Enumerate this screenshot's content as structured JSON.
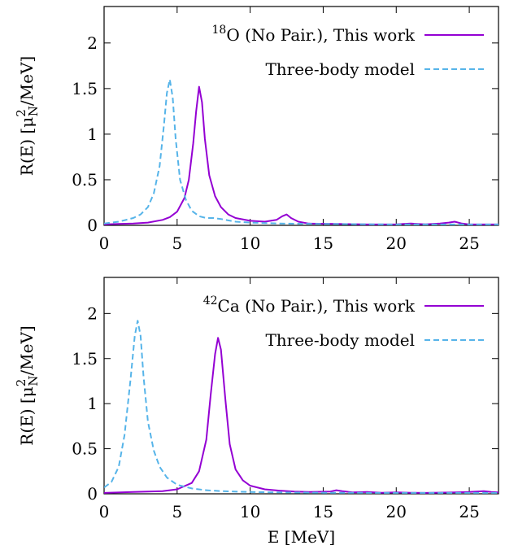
{
  "chart_data": [
    {
      "type": "line",
      "xlabel": "",
      "ylabel": "R(E)   [μ²N/MeV]",
      "ylabel_parts": {
        "prefix": "R(E)   [μ",
        "sup": "2",
        "sub": "N",
        "suffix": "/MeV]"
      },
      "xlim": [
        0,
        27
      ],
      "ylim": [
        0,
        2.4
      ],
      "xticks": [
        0,
        5,
        10,
        15,
        20,
        25
      ],
      "yticks": [
        0,
        0.5,
        1,
        1.5,
        2
      ],
      "xtick_labels": [
        "0",
        "5",
        "10",
        "15",
        "20",
        "25"
      ],
      "ytick_labels": [
        "0",
        "0.5",
        "1",
        "1.5",
        "2"
      ],
      "grid": false,
      "legend_position": "top-right",
      "series": [
        {
          "name": "18O (No Pair.), This work",
          "legend": {
            "sup": "18",
            "text": "O (No Pair.), This work"
          },
          "color": "#9400d3",
          "dash": "solid",
          "x": [
            0,
            1,
            2,
            3,
            4,
            4.5,
            5,
            5.5,
            5.8,
            6.1,
            6.3,
            6.5,
            6.7,
            6.9,
            7.2,
            7.6,
            8,
            8.5,
            9,
            10,
            11,
            11.8,
            12.2,
            12.5,
            12.8,
            13.3,
            14,
            16,
            18,
            20,
            21,
            22,
            23,
            23.6,
            24,
            24.5,
            25,
            27
          ],
          "y": [
            0.01,
            0.015,
            0.02,
            0.03,
            0.06,
            0.09,
            0.15,
            0.3,
            0.5,
            0.9,
            1.25,
            1.52,
            1.35,
            0.95,
            0.55,
            0.32,
            0.2,
            0.12,
            0.08,
            0.05,
            0.04,
            0.06,
            0.1,
            0.12,
            0.08,
            0.04,
            0.02,
            0.015,
            0.01,
            0.012,
            0.02,
            0.012,
            0.02,
            0.03,
            0.04,
            0.02,
            0.01,
            0.01
          ]
        },
        {
          "name": "Three-body model",
          "legend": {
            "sup": "",
            "text": "Three-body model"
          },
          "color": "#56b4e9",
          "dash": "dashed",
          "x": [
            0,
            1,
            2,
            2.5,
            3,
            3.4,
            3.8,
            4.1,
            4.3,
            4.5,
            4.7,
            4.9,
            5.2,
            5.6,
            6,
            6.5,
            7,
            7.5,
            8,
            9,
            10,
            12,
            15,
            20,
            25,
            27
          ],
          "y": [
            0.02,
            0.04,
            0.08,
            0.12,
            0.2,
            0.35,
            0.65,
            1.1,
            1.45,
            1.6,
            1.4,
            0.95,
            0.5,
            0.28,
            0.16,
            0.1,
            0.08,
            0.08,
            0.07,
            0.04,
            0.03,
            0.02,
            0.015,
            0.01,
            0.01,
            0.01
          ]
        }
      ]
    },
    {
      "type": "line",
      "xlabel": "E  [MeV]",
      "ylabel": "R(E)   [μ²N/MeV]",
      "ylabel_parts": {
        "prefix": "R(E)   [μ",
        "sup": "2",
        "sub": "N",
        "suffix": "/MeV]"
      },
      "xlim": [
        0,
        27
      ],
      "ylim": [
        0,
        2.4
      ],
      "xticks": [
        0,
        5,
        10,
        15,
        20,
        25
      ],
      "yticks": [
        0,
        0.5,
        1,
        1.5,
        2
      ],
      "xtick_labels": [
        "0",
        "5",
        "10",
        "15",
        "20",
        "25"
      ],
      "ytick_labels": [
        "0",
        "0.5",
        "1",
        "1.5",
        "2"
      ],
      "grid": false,
      "legend_position": "top-right",
      "series": [
        {
          "name": "42Ca (No Pair.), This work",
          "legend": {
            "sup": "42",
            "text": "Ca (No Pair.), This work"
          },
          "color": "#9400d3",
          "dash": "solid",
          "x": [
            0,
            2,
            4,
            5,
            6,
            6.5,
            7,
            7.3,
            7.6,
            7.8,
            8,
            8.3,
            8.6,
            9,
            9.5,
            10,
            11,
            12,
            13,
            14,
            15.5,
            15.9,
            16.3,
            17,
            18,
            19,
            20,
            21,
            22,
            24,
            25,
            26,
            26.5,
            27
          ],
          "y": [
            0.01,
            0.02,
            0.03,
            0.05,
            0.12,
            0.25,
            0.6,
            1.1,
            1.55,
            1.73,
            1.6,
            1.05,
            0.55,
            0.27,
            0.15,
            0.09,
            0.05,
            0.035,
            0.025,
            0.02,
            0.025,
            0.04,
            0.03,
            0.015,
            0.02,
            0.012,
            0.015,
            0.012,
            0.01,
            0.015,
            0.02,
            0.03,
            0.02,
            0.015
          ]
        },
        {
          "name": "Three-body model",
          "legend": {
            "sup": "",
            "text": "Three-body model"
          },
          "color": "#56b4e9",
          "dash": "dashed",
          "x": [
            0,
            0.5,
            1,
            1.4,
            1.8,
            2.1,
            2.3,
            2.5,
            2.7,
            3,
            3.4,
            3.8,
            4.3,
            5,
            6,
            7,
            8,
            10,
            12,
            15,
            20,
            25,
            27
          ],
          "y": [
            0.07,
            0.13,
            0.3,
            0.65,
            1.25,
            1.75,
            1.92,
            1.75,
            1.3,
            0.8,
            0.48,
            0.3,
            0.18,
            0.1,
            0.06,
            0.04,
            0.03,
            0.02,
            0.015,
            0.012,
            0.01,
            0.01,
            0.01
          ]
        }
      ]
    }
  ]
}
